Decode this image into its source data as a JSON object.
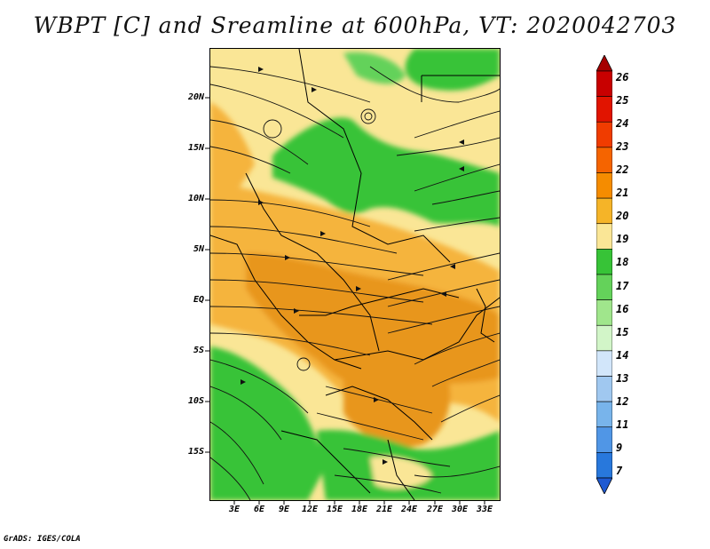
{
  "title": "WBPT [C] and Sreamline at 600hPa, VT: 2020042703",
  "footer": "GrADS: IGES/COLA",
  "lat_labels": [
    "20N",
    "15N",
    "10N",
    "5N",
    "EQ",
    "5S",
    "10S",
    "15S"
  ],
  "lon_labels": [
    "3E",
    "6E",
    "9E",
    "12E",
    "15E",
    "18E",
    "21E",
    "24E",
    "27E",
    "30E",
    "33E"
  ],
  "colorbar": {
    "labels": [
      "26",
      "25",
      "24",
      "23",
      "22",
      "21",
      "20",
      "19",
      "18",
      "17",
      "16",
      "15",
      "14",
      "13",
      "12",
      "11",
      "9",
      "7"
    ],
    "colors": [
      "#a50000",
      "#c80000",
      "#e11400",
      "#f03c00",
      "#f56400",
      "#f58c00",
      "#f5b428",
      "#fae696",
      "#37c337",
      "#64d25a",
      "#a0e68c",
      "#d2f5c8",
      "#d2e6fa",
      "#a0c8f0",
      "#78b4eb",
      "#5096e6",
      "#2878dc",
      "#1e5ad2"
    ]
  },
  "field_colors": {
    "orange": "#e8961e",
    "light_orange": "#f5b43c",
    "yellow": "#fae696",
    "green": "#37c337",
    "light_green": "#64d25a"
  }
}
